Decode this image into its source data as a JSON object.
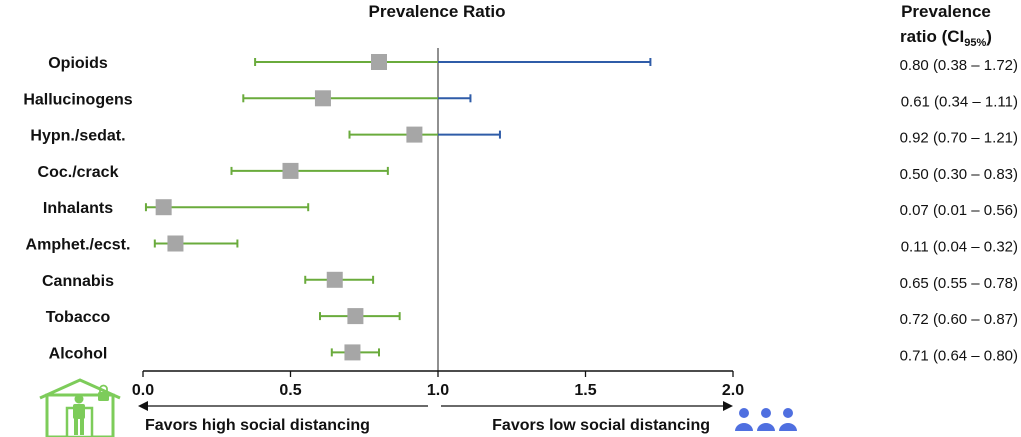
{
  "colors": {
    "ci_favors_high": "#6aab3c",
    "ci_favors_low": "#2f5ca8",
    "marker": "#a6a6a6",
    "home_icon": "#7dcc5a",
    "people_icon": "#4f6fe0"
  },
  "chart_data": {
    "type": "forest",
    "title": "Prevalence Ratio",
    "right_header_line1": "Prevalence",
    "right_header_prefix": "ratio (CI",
    "right_header_sub": "95%",
    "right_header_suffix": ")",
    "xlim": [
      0,
      2
    ],
    "reference_line": 1.0,
    "ticks": [
      {
        "value": 0,
        "label": "0.0"
      },
      {
        "value": 0.5,
        "label": "0.5"
      },
      {
        "value": 1.0,
        "label": "1.0"
      },
      {
        "value": 1.5,
        "label": "1.5"
      },
      {
        "value": 2.0,
        "label": "2.0"
      }
    ],
    "left_direction_label": "Favors high social distancing",
    "right_direction_label": "Favors low social distancing",
    "rows": [
      {
        "label": "Opioids",
        "pr": 0.8,
        "lo": 0.38,
        "hi": 1.72,
        "text": "0.80 (0.38 – 1.72)"
      },
      {
        "label": "Hallucinogens",
        "pr": 0.61,
        "lo": 0.34,
        "hi": 1.11,
        "text": "0.61 (0.34 – 1.11)"
      },
      {
        "label": "Hypn./sedat.",
        "pr": 0.92,
        "lo": 0.7,
        "hi": 1.21,
        "text": "0.92 (0.70 – 1.21)"
      },
      {
        "label": "Coc./crack",
        "pr": 0.5,
        "lo": 0.3,
        "hi": 0.83,
        "text": "0.50 (0.30 – 0.83)"
      },
      {
        "label": "Inhalants",
        "pr": 0.07,
        "lo": 0.01,
        "hi": 0.56,
        "text": "0.07 (0.01 – 0.56)"
      },
      {
        "label": "Amphet./ecst.",
        "pr": 0.11,
        "lo": 0.04,
        "hi": 0.32,
        "text": "0.11 (0.04 – 0.32)"
      },
      {
        "label": "Cannabis",
        "pr": 0.65,
        "lo": 0.55,
        "hi": 0.78,
        "text": "0.65 (0.55 – 0.78)"
      },
      {
        "label": "Tobacco",
        "pr": 0.72,
        "lo": 0.6,
        "hi": 0.87,
        "text": "0.72 (0.60 – 0.87)"
      },
      {
        "label": "Alcohol",
        "pr": 0.71,
        "lo": 0.64,
        "hi": 0.8,
        "text": "0.71 (0.64 – 0.80)"
      }
    ]
  }
}
